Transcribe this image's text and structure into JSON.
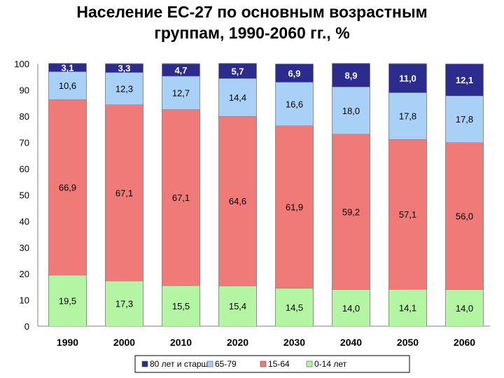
{
  "title_line1": "Население ЕС-27 по основным возрастным",
  "title_line2": "группам, 1990-2060 гг., %",
  "chart_data": {
    "type": "bar",
    "stacked": true,
    "categories": [
      "1990",
      "2000",
      "2010",
      "2020",
      "2030",
      "2040",
      "2050",
      "2060"
    ],
    "series": [
      {
        "name": "0-14 лет",
        "color": "#b4f5a4",
        "values": [
          19.5,
          17.3,
          15.5,
          15.4,
          14.5,
          14.0,
          14.1,
          14.0
        ],
        "labels": [
          "19,5",
          "17,3",
          "15,5",
          "15,4",
          "14,5",
          "14,0",
          "14,1",
          "14,0"
        ]
      },
      {
        "name": "15-64",
        "color": "#f07a78",
        "values": [
          66.9,
          67.1,
          67.1,
          64.6,
          61.9,
          59.2,
          57.1,
          56.0
        ],
        "labels": [
          "66,9",
          "67,1",
          "67,1",
          "64,6",
          "61,9",
          "59,2",
          "57,1",
          "56,0"
        ]
      },
      {
        "name": "65-79",
        "color": "#a9d1f7",
        "values": [
          10.6,
          12.3,
          12.7,
          14.4,
          16.6,
          18.0,
          17.8,
          17.8
        ],
        "labels": [
          "10,6",
          "12,3",
          "12,7",
          "14,4",
          "16,6",
          "18,0",
          "17,8",
          "17,8"
        ]
      },
      {
        "name": "80 лет и старше",
        "color": "#2c2c8e",
        "values": [
          3.1,
          3.3,
          4.7,
          5.7,
          6.9,
          8.9,
          11.0,
          12.1
        ],
        "labels": [
          "3,1",
          "3,3",
          "4,7",
          "5,7",
          "6,9",
          "8,9",
          "11,0",
          "12,1"
        ]
      }
    ],
    "legend_order": [
      3,
      2,
      1,
      0
    ],
    "legend_position": "bottom",
    "ylim": [
      0,
      100
    ],
    "yticks": [
      0,
      10,
      20,
      30,
      40,
      50,
      60,
      70,
      80,
      90,
      100
    ],
    "grid": false,
    "xlabel": "",
    "ylabel": ""
  }
}
